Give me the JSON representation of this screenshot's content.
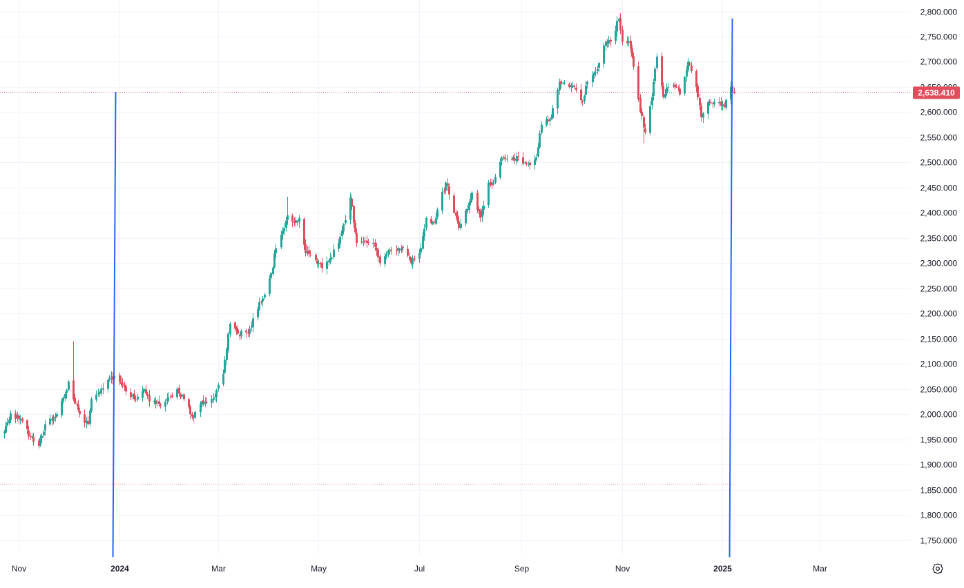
{
  "chart_data": {
    "type": "candlestick",
    "colors": {
      "up": "#26a69a",
      "down": "#e04e5e",
      "wick_up": "#26a69a",
      "wick_down": "#e04e5e",
      "grid": "#f0f3fa",
      "axis_text": "#131722",
      "price_tag_bg": "#e04e5e",
      "price_tag_text": "#ffffff",
      "marker_line": "#2962ff",
      "dotted_line": "#e04e5e"
    },
    "ylim": [
      1720,
      2820
    ],
    "y_ticks": [
      1750,
      1800,
      1850,
      1900,
      1950,
      2000,
      2050,
      2100,
      2150,
      2200,
      2250,
      2300,
      2350,
      2400,
      2450,
      2500,
      2550,
      2600,
      2650,
      2700,
      2750,
      2800
    ],
    "y_tick_labels": [
      "1,750.000",
      "1,800.000",
      "1,850.000",
      "1,900.000",
      "1,950.000",
      "2,000.000",
      "2,050.000",
      "2,100.000",
      "2,150.000",
      "2,200.000",
      "2,250.000",
      "2,300.000",
      "2,350.000",
      "2,400.000",
      "2,450.000",
      "2,500.000",
      "2,550.000",
      "2,600.000",
      "2,650.000",
      "2,700.000",
      "2,750.000",
      "2,800.000"
    ],
    "x_range": [
      "2023-10-23",
      "2025-03-31"
    ],
    "x_ticks": [
      {
        "date": "2023-11-01",
        "label": "Nov",
        "bold": false
      },
      {
        "date": "2024-01-01",
        "label": "2024",
        "bold": true
      },
      {
        "date": "2024-03-01",
        "label": "Mar",
        "bold": false
      },
      {
        "date": "2024-05-01",
        "label": "May",
        "bold": false
      },
      {
        "date": "2024-07-01",
        "label": "Jul",
        "bold": false
      },
      {
        "date": "2024-09-01",
        "label": "Sep",
        "bold": false
      },
      {
        "date": "2024-11-01",
        "label": "Nov",
        "bold": false
      },
      {
        "date": "2025-01-01",
        "label": "2025",
        "bold": true
      },
      {
        "date": "2025-03-01",
        "label": "Mar",
        "bold": false
      }
    ],
    "last_price": 2638.41,
    "last_price_label": "2,638.410",
    "horizontal_levels": [
      2638.41,
      1862
    ],
    "vertical_markers": [
      {
        "date": "2023-12-29",
        "y_from": 1716,
        "y_to": 2640
      },
      {
        "date": "2025-01-06",
        "y_from": 1716,
        "y_to": 2786
      }
    ],
    "anchors": [
      [
        "2023-10-23",
        1965
      ],
      [
        "2023-10-27",
        2002
      ],
      [
        "2023-11-02",
        1990
      ],
      [
        "2023-11-08",
        1955
      ],
      [
        "2023-11-13",
        1937
      ],
      [
        "2023-11-17",
        1980
      ],
      [
        "2023-11-24",
        2000
      ],
      [
        "2023-11-29",
        2040
      ],
      [
        "2023-12-01",
        2065
      ],
      [
        "2023-12-04",
        2030
      ],
      [
        "2023-12-08",
        2000
      ],
      [
        "2023-12-13",
        1980
      ],
      [
        "2023-12-15",
        2030
      ],
      [
        "2023-12-20",
        2040
      ],
      [
        "2023-12-27",
        2075
      ],
      [
        "2024-01-02",
        2060
      ],
      [
        "2024-01-05",
        2045
      ],
      [
        "2024-01-10",
        2030
      ],
      [
        "2024-01-16",
        2050
      ],
      [
        "2024-01-19",
        2025
      ],
      [
        "2024-01-25",
        2020
      ],
      [
        "2024-02-01",
        2035
      ],
      [
        "2024-02-05",
        2050
      ],
      [
        "2024-02-09",
        2030
      ],
      [
        "2024-02-14",
        1995
      ],
      [
        "2024-02-20",
        2025
      ],
      [
        "2024-02-28",
        2035
      ],
      [
        "2024-03-04",
        2080
      ],
      [
        "2024-03-08",
        2180
      ],
      [
        "2024-03-13",
        2160
      ],
      [
        "2024-03-19",
        2160
      ],
      [
        "2024-03-22",
        2190
      ],
      [
        "2024-03-28",
        2230
      ],
      [
        "2024-04-02",
        2280
      ],
      [
        "2024-04-05",
        2330
      ],
      [
        "2024-04-10",
        2370
      ],
      [
        "2024-04-12",
        2395
      ],
      [
        "2024-04-16",
        2380
      ],
      [
        "2024-04-19",
        2390
      ],
      [
        "2024-04-23",
        2320
      ],
      [
        "2024-05-01",
        2300
      ],
      [
        "2024-05-03",
        2290
      ],
      [
        "2024-05-08",
        2310
      ],
      [
        "2024-05-13",
        2340
      ],
      [
        "2024-05-20",
        2430
      ],
      [
        "2024-05-24",
        2340
      ],
      [
        "2024-05-30",
        2340
      ],
      [
        "2024-06-03",
        2340
      ],
      [
        "2024-06-07",
        2300
      ],
      [
        "2024-06-12",
        2325
      ],
      [
        "2024-06-18",
        2330
      ],
      [
        "2024-06-21",
        2330
      ],
      [
        "2024-06-26",
        2300
      ],
      [
        "2024-07-02",
        2330
      ],
      [
        "2024-07-05",
        2390
      ],
      [
        "2024-07-10",
        2380
      ],
      [
        "2024-07-17",
        2460
      ],
      [
        "2024-07-22",
        2400
      ],
      [
        "2024-07-25",
        2370
      ],
      [
        "2024-07-31",
        2420
      ],
      [
        "2024-08-02",
        2440
      ],
      [
        "2024-08-07",
        2390
      ],
      [
        "2024-08-12",
        2460
      ],
      [
        "2024-08-15",
        2460
      ],
      [
        "2024-08-20",
        2510
      ],
      [
        "2024-08-27",
        2510
      ],
      [
        "2024-09-03",
        2500
      ],
      [
        "2024-09-06",
        2495
      ],
      [
        "2024-09-10",
        2510
      ],
      [
        "2024-09-13",
        2575
      ],
      [
        "2024-09-19",
        2590
      ],
      [
        "2024-09-24",
        2660
      ],
      [
        "2024-09-30",
        2650
      ],
      [
        "2024-10-03",
        2650
      ],
      [
        "2024-10-08",
        2620
      ],
      [
        "2024-10-11",
        2660
      ],
      [
        "2024-10-16",
        2680
      ],
      [
        "2024-10-22",
        2740
      ],
      [
        "2024-10-25",
        2740
      ],
      [
        "2024-10-30",
        2785
      ],
      [
        "2024-11-01",
        2740
      ],
      [
        "2024-11-05",
        2740
      ],
      [
        "2024-11-08",
        2690
      ],
      [
        "2024-11-12",
        2600
      ],
      [
        "2024-11-15",
        2560
      ],
      [
        "2024-11-19",
        2630
      ],
      [
        "2024-11-22",
        2710
      ],
      [
        "2024-11-26",
        2630
      ],
      [
        "2024-11-29",
        2650
      ],
      [
        "2024-12-04",
        2650
      ],
      [
        "2024-12-06",
        2635
      ],
      [
        "2024-12-11",
        2700
      ],
      [
        "2024-12-16",
        2650
      ],
      [
        "2024-12-19",
        2590
      ],
      [
        "2024-12-23",
        2620
      ],
      [
        "2024-12-27",
        2620
      ],
      [
        "2025-01-02",
        2610
      ],
      [
        "2025-01-06",
        2650
      ],
      [
        "2025-01-08",
        2638.41
      ]
    ],
    "extra_wicks": [
      {
        "date": "2023-12-04",
        "high": 2145
      },
      {
        "date": "2024-04-12",
        "high": 2432
      },
      {
        "date": "2024-11-14",
        "low": 2538
      }
    ]
  },
  "toolbar": {
    "settings_icon": "gear-icon"
  }
}
